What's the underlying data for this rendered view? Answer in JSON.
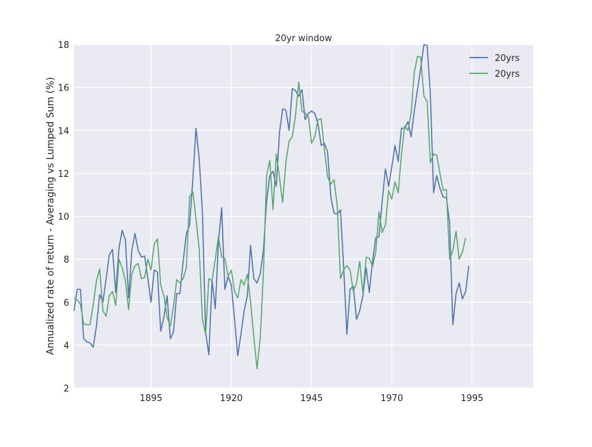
{
  "chart_data": {
    "type": "line",
    "title": "20yr window",
    "xlabel": "",
    "ylabel": "Annualized rate of return - Averaging vs Lumped Sum (%)",
    "xlim": [
      1871,
      2014
    ],
    "ylim": [
      2,
      18
    ],
    "xticks": [
      1895,
      1920,
      1945,
      1970,
      1995
    ],
    "yticks": [
      2,
      4,
      6,
      8,
      10,
      12,
      14,
      16,
      18
    ],
    "grid": true,
    "legend_position": "top-right",
    "colors": {
      "background": "#EAEAF2",
      "grid": "#FFFFFF"
    },
    "series": [
      {
        "name": "20yrs",
        "color": "#4C72B0",
        "x_start": 1871,
        "values": [
          5.6,
          6.6,
          6.6,
          4.3,
          4.15,
          4.1,
          3.9,
          4.9,
          6.35,
          6.0,
          7.1,
          8.2,
          8.45,
          6.45,
          8.5,
          9.35,
          8.9,
          6.2,
          8.4,
          9.2,
          8.4,
          8.1,
          8.15,
          7.1,
          6.0,
          7.5,
          7.4,
          4.65,
          5.3,
          6.3,
          4.3,
          4.6,
          6.4,
          6.4,
          7.9,
          9.2,
          9.6,
          11.7,
          14.1,
          12.7,
          10.2,
          4.6,
          3.55,
          7.0,
          5.7,
          8.8,
          10.4,
          6.6,
          7.2,
          6.8,
          5.2,
          3.5,
          4.5,
          5.6,
          6.3,
          8.65,
          7.1,
          6.9,
          7.3,
          8.4,
          10.7,
          11.9,
          12.1,
          11.4,
          13.9,
          15.0,
          14.95,
          14.0,
          15.95,
          15.85,
          15.6,
          15.9,
          14.5,
          14.8,
          14.9,
          14.8,
          14.3,
          13.3,
          13.4,
          13.0,
          10.9,
          10.15,
          10.1,
          10.3,
          7.6,
          4.5,
          6.6,
          6.75,
          5.2,
          5.6,
          6.3,
          7.6,
          6.45,
          7.9,
          9.0,
          9.05,
          10.7,
          12.2,
          11.4,
          12.3,
          13.3,
          12.55,
          14.1,
          14.1,
          14.4,
          13.7,
          14.9,
          15.9,
          16.9,
          18.0,
          17.95,
          15.7,
          11.1,
          11.9,
          11.3,
          10.9,
          10.85,
          9.7,
          4.95,
          6.4,
          6.9,
          6.15,
          6.5,
          7.7
        ]
      },
      {
        "name": "20yrs",
        "color": "#55A868",
        "x_start": 1871,
        "values": [
          6.2,
          6.1,
          5.9,
          5.0,
          4.95,
          4.95,
          5.9,
          7.0,
          7.55,
          5.6,
          5.35,
          6.3,
          6.5,
          5.85,
          8.0,
          7.6,
          7.0,
          5.65,
          7.3,
          7.7,
          7.8,
          7.1,
          7.15,
          8.0,
          7.5,
          8.7,
          8.95,
          6.8,
          6.3,
          5.3,
          4.9,
          5.8,
          7.05,
          6.9,
          7.1,
          7.6,
          10.9,
          11.15,
          9.9,
          8.5,
          5.2,
          4.5,
          7.1,
          7.0,
          8.0,
          9.05,
          8.1,
          8.05,
          7.2,
          7.5,
          6.5,
          6.2,
          7.05,
          6.8,
          7.3,
          6.0,
          4.4,
          2.9,
          4.3,
          7.3,
          11.9,
          12.6,
          10.3,
          12.9,
          11.8,
          10.65,
          12.5,
          13.5,
          13.7,
          14.7,
          16.25,
          14.9,
          14.8,
          14.65,
          13.4,
          13.7,
          14.5,
          14.55,
          13.1,
          11.85,
          11.5,
          11.7,
          10.5,
          7.1,
          7.5,
          7.7,
          7.5,
          6.5,
          6.9,
          7.9,
          6.4,
          8.1,
          8.05,
          7.65,
          8.35,
          10.2,
          9.25,
          9.6,
          11.2,
          10.8,
          11.6,
          11.1,
          12.9,
          14.2,
          14.0,
          14.8,
          16.7,
          17.45,
          17.4,
          15.6,
          15.35,
          12.5,
          12.9,
          12.85,
          12.0,
          11.2,
          11.25,
          8.0,
          8.4,
          9.3,
          8.0,
          8.35,
          9.0
        ]
      }
    ]
  }
}
